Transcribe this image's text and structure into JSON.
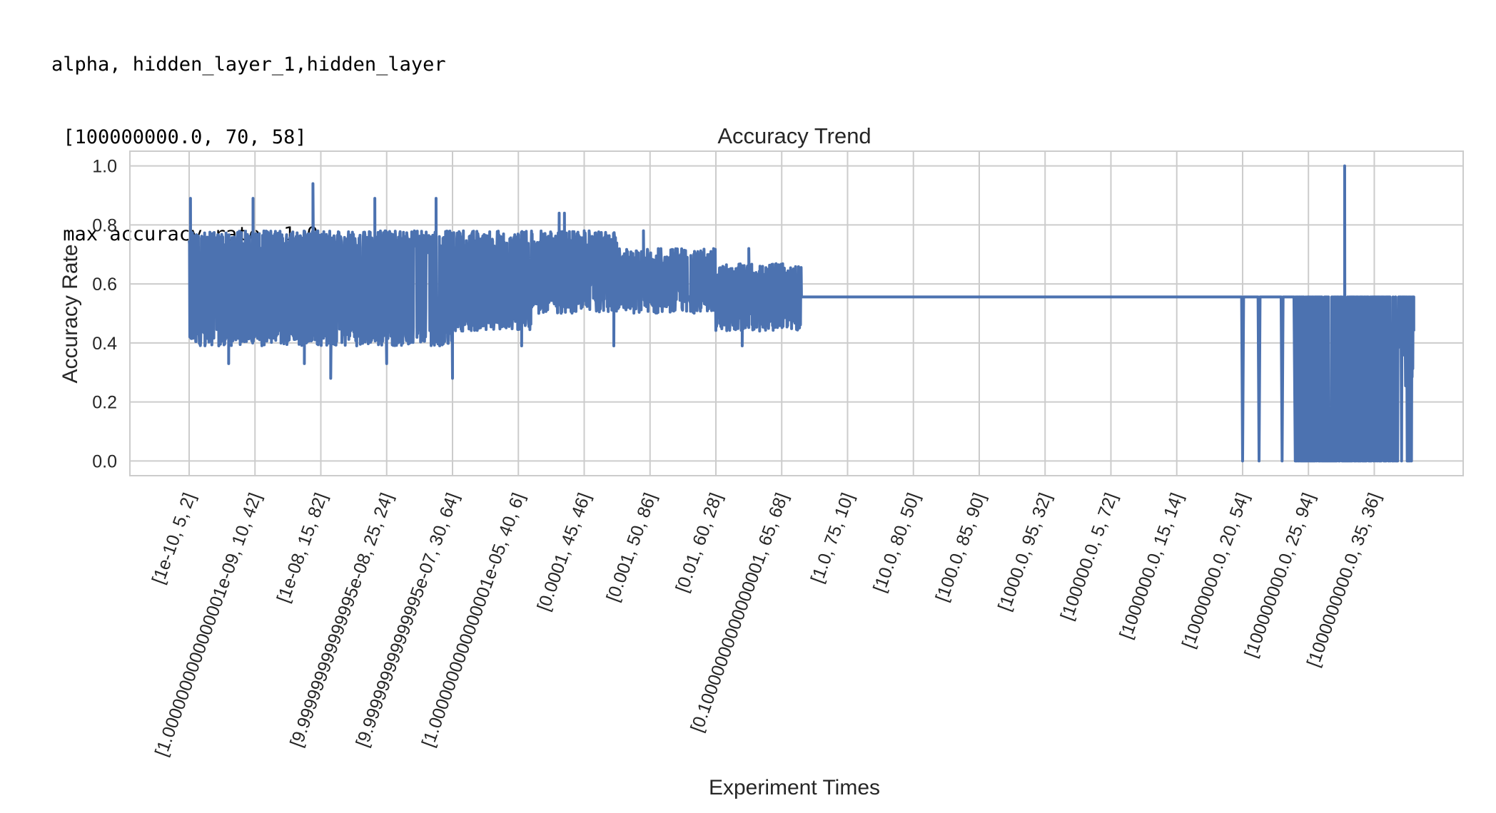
{
  "console": {
    "header_line": "alpha, hidden_layer_1,hidden_layer",
    "best_params_line": " [100000000.0, 70, 58]",
    "max_accuracy_line": " max accuracy rate: 1.0"
  },
  "chart_data": {
    "type": "line",
    "title": "Accuracy Trend",
    "xlabel": "Experiment Times",
    "ylabel": "Accuracy Rate",
    "ylim": [
      -0.05,
      1.05
    ],
    "yticks": [
      0.0,
      0.2,
      0.4,
      0.6,
      0.8,
      1.0
    ],
    "ytick_labels": [
      "0.0",
      "0.2",
      "0.4",
      "0.6",
      "0.8",
      "1.0"
    ],
    "xlim": [
      -90,
      1935
    ],
    "xticks": [
      0,
      100,
      200,
      300,
      400,
      500,
      600,
      700,
      800,
      900,
      1000,
      1100,
      1200,
      1300,
      1400,
      1500,
      1600,
      1700,
      1800
    ],
    "xtick_labels": [
      "[1e-10, 5, 2]",
      "[1.0000000000000001e-09, 10, 42]",
      "[1e-08, 15, 82]",
      "[9.999999999999995e-08, 25, 24]",
      "[9.999999999999995e-07, 30, 64]",
      "[1.0000000000000001e-05, 40, 6]",
      "[0.0001, 45, 46]",
      "[0.001, 50, 86]",
      "[0.01, 60, 28]",
      "[0.10000000000000001, 65, 68]",
      "[1.0, 75, 10]",
      "[10.0, 80, 50]",
      "[100.0, 85, 90]",
      "[1000.0, 95, 32]",
      "[100000.0, 5, 72]",
      "[1000000.0, 15, 14]",
      "[10000000.0, 20, 54]",
      "[100000000.0, 25, 94]",
      "[1000000000.0, 35, 36]"
    ],
    "grid": true,
    "legend": "none",
    "series_color": "#4c72b0",
    "series": [
      {
        "segments": [
          {
            "x_range": [
              0,
              100
            ],
            "band": [
              0.39,
              0.78
            ],
            "peaks": [
              {
                "x": 2,
                "y": 0.89
              },
              {
                "x": 97,
                "y": 0.89
              }
            ],
            "troughs": [
              {
                "x": 60,
                "y": 0.33
              }
            ]
          },
          {
            "x_range": [
              100,
              200
            ],
            "band": [
              0.39,
              0.78
            ],
            "peaks": [
              {
                "x": 188,
                "y": 0.94
              }
            ],
            "troughs": [
              {
                "x": 175,
                "y": 0.33
              }
            ]
          },
          {
            "x_range": [
              200,
              300
            ],
            "band": [
              0.39,
              0.78
            ],
            "peaks": [
              {
                "x": 282,
                "y": 0.89
              }
            ],
            "troughs": [
              {
                "x": 215,
                "y": 0.28
              },
              {
                "x": 300,
                "y": 0.33
              }
            ]
          },
          {
            "x_range": [
              300,
              400
            ],
            "band": [
              0.39,
              0.78
            ],
            "peaks": [
              {
                "x": 375,
                "y": 0.89
              }
            ],
            "troughs": [
              {
                "x": 400,
                "y": 0.28
              }
            ]
          },
          {
            "x_range": [
              400,
              520
            ],
            "band": [
              0.44,
              0.78
            ],
            "peaks": [
              {
                "x": 562,
                "y": 0.84
              }
            ],
            "troughs": [
              {
                "x": 505,
                "y": 0.39
              }
            ]
          },
          {
            "x_range": [
              520,
              650
            ],
            "band": [
              0.5,
              0.78
            ],
            "peaks": [
              {
                "x": 570,
                "y": 0.84
              },
              {
                "x": 600,
                "y": 0.78
              }
            ],
            "troughs": [
              {
                "x": 645,
                "y": 0.39
              }
            ]
          },
          {
            "x_range": [
              650,
              800
            ],
            "band": [
              0.5,
              0.72
            ],
            "peaks": [
              {
                "x": 690,
                "y": 0.78
              }
            ],
            "troughs": []
          },
          {
            "x_range": [
              800,
              930
            ],
            "band": [
              0.44,
              0.67
            ],
            "peaks": [
              {
                "x": 850,
                "y": 0.72
              }
            ],
            "troughs": [
              {
                "x": 840,
                "y": 0.39
              }
            ]
          }
        ],
        "flat": {
          "x_range": [
            930,
            1590
          ],
          "y": 0.556
        },
        "drops": [
          {
            "x": 1600,
            "y": 0.0
          },
          {
            "x": 1625,
            "y": 0.0
          },
          {
            "x": 1660,
            "y": 0.0
          }
        ],
        "dense_tail": {
          "x_range": [
            1680,
            1860
          ],
          "band": [
            0.0,
            0.556
          ],
          "max_point": {
            "x": 1755,
            "y": 1.0
          }
        }
      }
    ]
  }
}
